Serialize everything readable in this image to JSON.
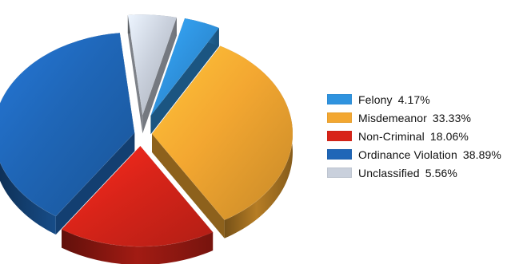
{
  "chart_data": {
    "type": "pie",
    "title": "",
    "categories": [
      "Felony",
      "Misdemeanor",
      "Non-Criminal",
      "Ordinance Violation",
      "Unclassified"
    ],
    "values": [
      4.17,
      33.33,
      18.06,
      38.89,
      5.56
    ],
    "value_labels": [
      "4.17%",
      "33.33%",
      "18.06%",
      "38.89%",
      "5.56%"
    ],
    "colors": [
      "#2f93df",
      "#f3a731",
      "#d82419",
      "#1f66b7",
      "#c9d0dc"
    ],
    "legend_position": "right",
    "exploded": true,
    "three_d": true
  }
}
